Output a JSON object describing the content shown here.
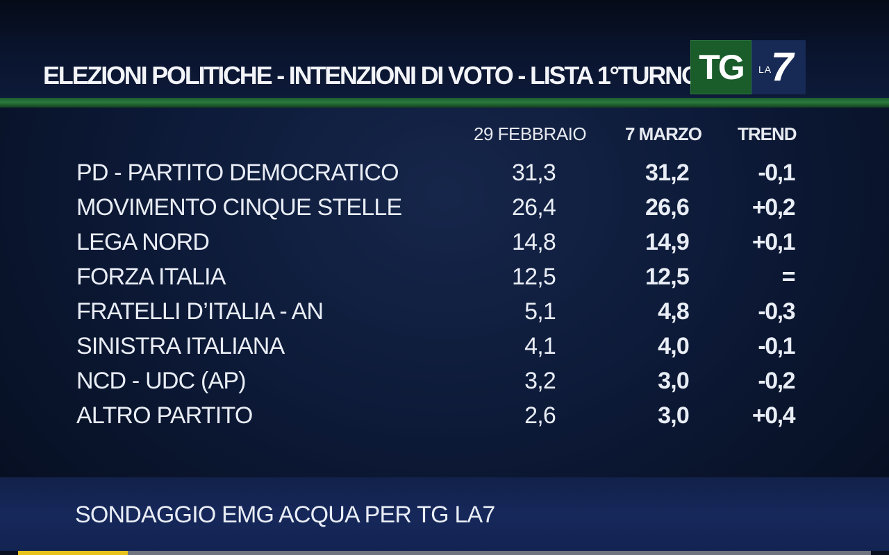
{
  "header": {
    "title": "ELEZIONI POLITICHE - INTENZIONI DI VOTO - LISTA 1°TURNO",
    "logo": {
      "tg": "TG",
      "la": "LA",
      "seven": "7"
    }
  },
  "table": {
    "columns": [
      "29 FEBBRAIO",
      "7 MARZO",
      "TREND"
    ],
    "rows": [
      {
        "party": "PD - PARTITO DEMOCRATICO",
        "v1": "31,3",
        "v2": "31,2",
        "trend": "-0,1"
      },
      {
        "party": "MOVIMENTO CINQUE STELLE",
        "v1": "26,4",
        "v2": "26,6",
        "trend": "+0,2"
      },
      {
        "party": "LEGA NORD",
        "v1": "14,8",
        "v2": "14,9",
        "trend": "+0,1"
      },
      {
        "party": "FORZA ITALIA",
        "v1": "12,5",
        "v2": "12,5",
        "trend": "="
      },
      {
        "party": "FRATELLI D’ITALIA - AN",
        "v1": "5,1",
        "v2": "4,8",
        "trend": "-0,3"
      },
      {
        "party": "SINISTRA ITALIANA",
        "v1": "4,1",
        "v2": "4,0",
        "trend": "-0,1"
      },
      {
        "party": "NCD - UDC (AP)",
        "v1": "3,2",
        "v2": "3,0",
        "trend": "-0,2"
      },
      {
        "party": "ALTRO PARTITO",
        "v1": "2,6",
        "v2": "3,0",
        "trend": "+0,4"
      }
    ]
  },
  "footer": {
    "source": "SONDAGGIO EMG ACQUA PER TG LA7"
  },
  "colors": {
    "background": "#0d1a38",
    "green_rule": "#2a7a3e",
    "logo_green": "#1a5c2a",
    "logo_blue": "#172a55",
    "footer_band": "#16285a",
    "progress_yellow": "#e7c21a"
  }
}
